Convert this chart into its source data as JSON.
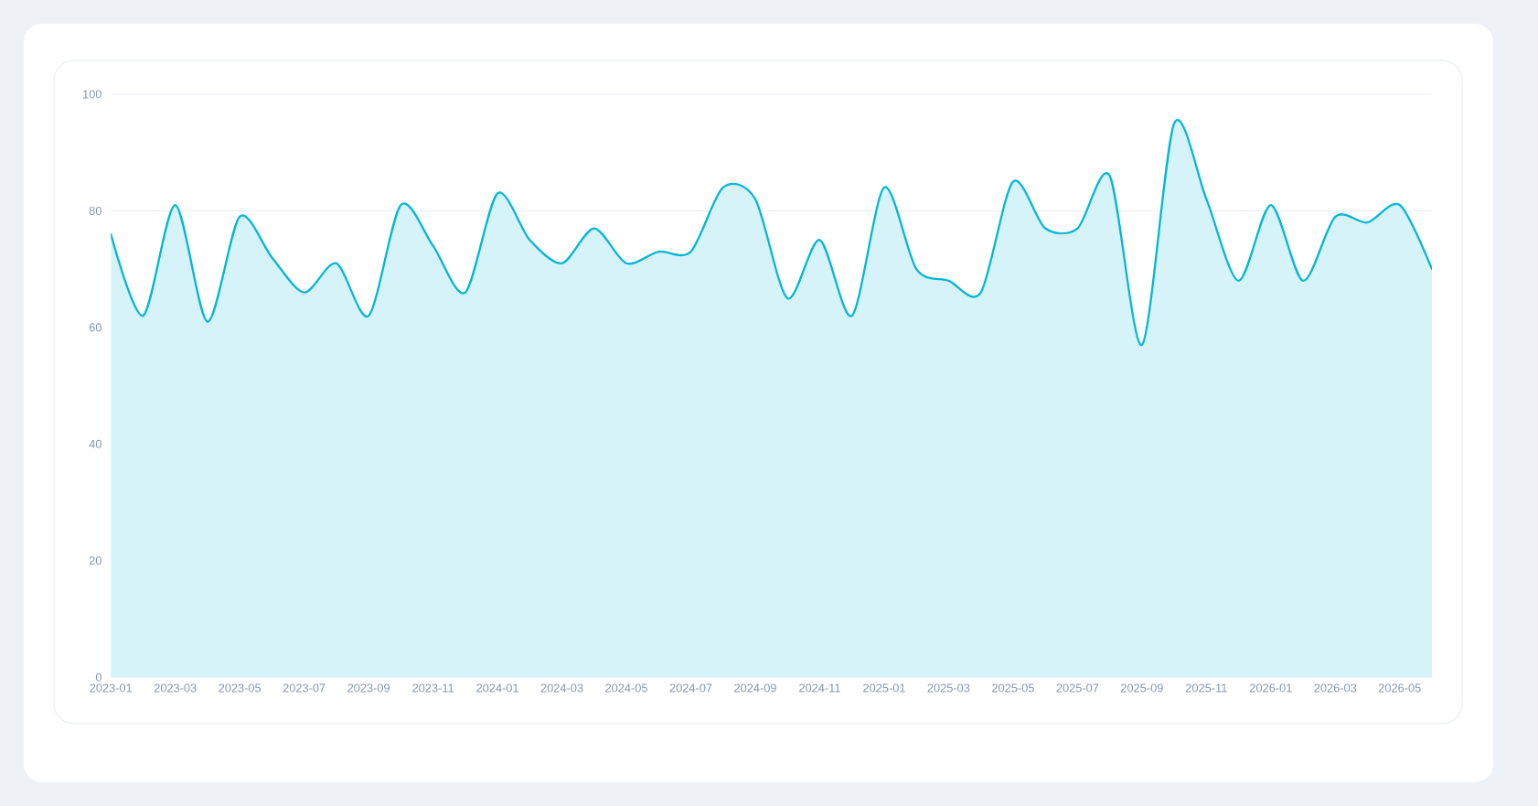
{
  "chart_data": {
    "type": "area",
    "categories": [
      "2023-01",
      null,
      "2023-03",
      null,
      "2023-05",
      null,
      "2023-07",
      null,
      "2023-09",
      null,
      "2023-11",
      null,
      "2024-01",
      null,
      "2024-03",
      null,
      "2024-05",
      null,
      "2024-07",
      null,
      "2024-09",
      null,
      "2024-11",
      null,
      "2025-01",
      null,
      "2025-03",
      null,
      "2025-05",
      null,
      "2025-07",
      null,
      "2025-09",
      null,
      "2025-11",
      null,
      "2026-01",
      null,
      "2026-03",
      null,
      "2026-05",
      null
    ],
    "values": [
      76,
      62,
      81,
      61,
      79,
      72,
      66,
      71,
      62,
      81,
      74,
      66,
      83,
      75,
      71,
      77,
      71,
      73,
      73,
      84,
      82,
      65,
      75,
      62,
      84,
      70,
      68,
      66,
      85,
      77,
      77,
      86,
      57,
      95,
      82,
      68,
      81,
      68,
      79,
      78,
      81,
      70
    ],
    "color": "#06b6d4",
    "ylim": [
      0,
      100
    ],
    "yticks": [
      0,
      20,
      40,
      60,
      80,
      100
    ],
    "grid": "y"
  }
}
